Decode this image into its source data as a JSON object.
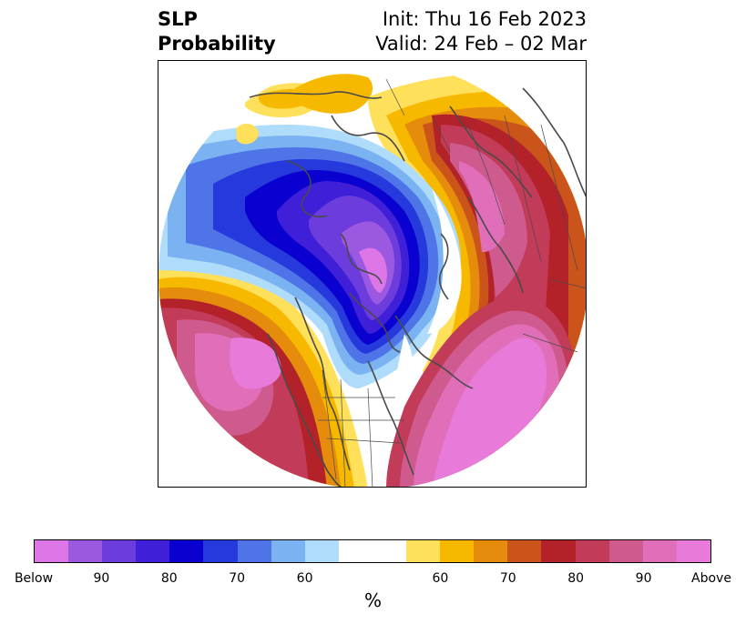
{
  "title": {
    "line1": "SLP",
    "line2": "Probability",
    "init": "Init: Thu 16 Feb 2023",
    "valid": "Valid: 24 Feb – 02 Mar"
  },
  "colorbar": {
    "unit": "%",
    "colors": [
      "#dd77e8",
      "#9b58e0",
      "#6d3cdc",
      "#3f1fd8",
      "#0a00d0",
      "#2539dd",
      "#4f74e8",
      "#7bb3f2",
      "#b0dcfb",
      "#ffffff",
      "#ffffff",
      "#ffe05a",
      "#f7b900",
      "#e58c0c",
      "#ca5419",
      "#b32229",
      "#c23b58",
      "#cf5a8e",
      "#e06eb9",
      "#e87ada"
    ],
    "weights": [
      1,
      1,
      1,
      1,
      1,
      1,
      1,
      1,
      1,
      1,
      1,
      1,
      1,
      1,
      1,
      1,
      1,
      1,
      1,
      1
    ],
    "ticks": [
      "Below",
      "90",
      "80",
      "70",
      "60",
      "60",
      "70",
      "80",
      "90",
      "Above"
    ],
    "tick_index": [
      0,
      2,
      4,
      6,
      8,
      12,
      14,
      16,
      18,
      20
    ]
  },
  "map": {
    "features": [
      "probability-below-north-america",
      "probability-above-north-atlantic",
      "probability-above-north-pacific",
      "coastlines",
      "country-borders"
    ]
  }
}
